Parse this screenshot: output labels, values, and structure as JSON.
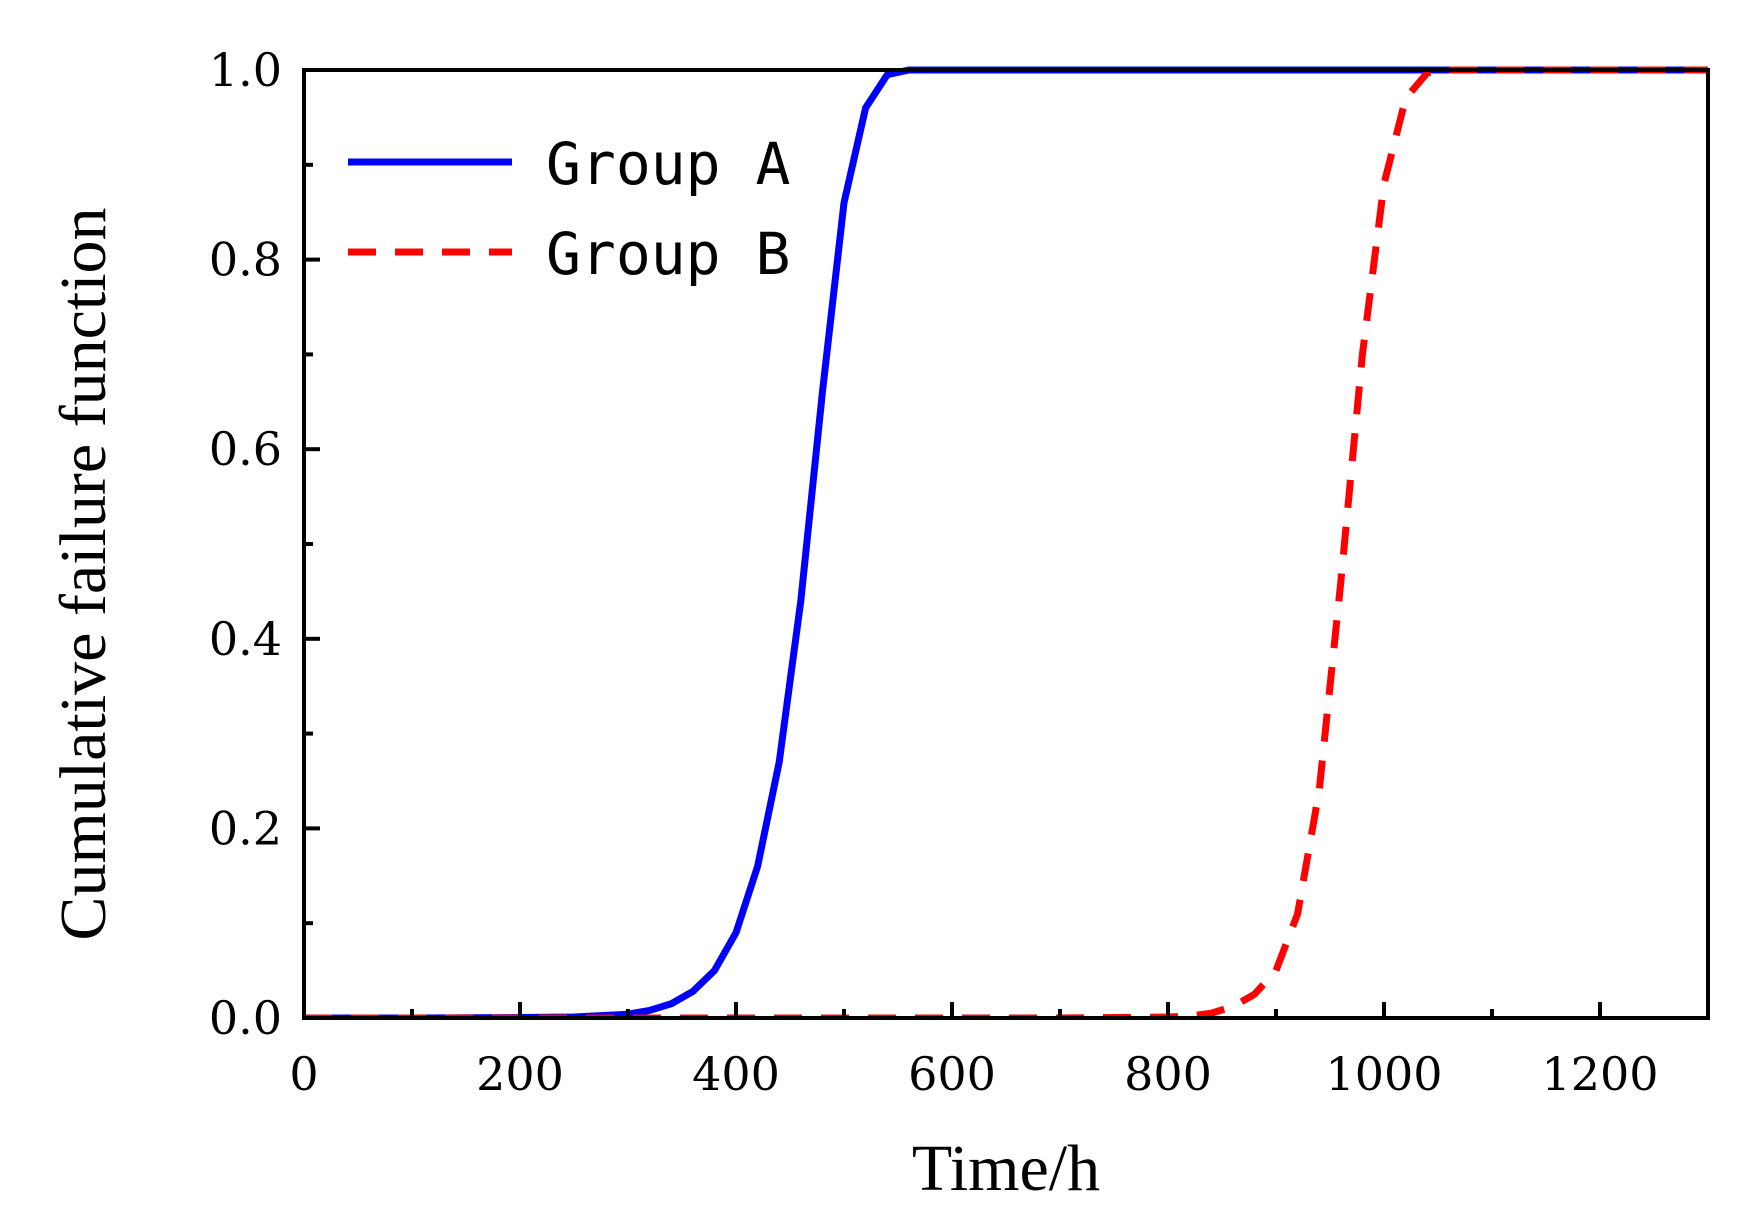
{
  "chart_data": {
    "type": "line",
    "xlabel": "Time/h",
    "ylabel": "Cumulative failure function",
    "xlim": [
      0,
      1300
    ],
    "ylim": [
      0,
      1.0
    ],
    "x_ticks": [
      "0",
      "200",
      "400",
      "600",
      "800",
      "1000",
      "1200"
    ],
    "x_tick_values": [
      0,
      200,
      400,
      600,
      800,
      1000,
      1200
    ],
    "y_ticks": [
      "0.0",
      "0.2",
      "0.4",
      "0.6",
      "0.8",
      "1.0"
    ],
    "y_tick_values": [
      0.0,
      0.2,
      0.4,
      0.6,
      0.8,
      1.0
    ],
    "x_minor_tick_values": [
      100,
      300,
      500,
      700,
      900,
      1100
    ],
    "y_minor_tick_values": [
      0.1,
      0.3,
      0.5,
      0.7,
      0.9
    ],
    "grid": false,
    "legend_position": "top-left",
    "series": [
      {
        "name": "Group A",
        "color": "#0000ff",
        "style": "solid",
        "x": [
          0,
          100,
          200,
          250,
          300,
          320,
          340,
          360,
          380,
          400,
          420,
          440,
          460,
          480,
          500,
          520,
          540,
          560,
          580,
          600,
          700,
          800,
          900,
          1000,
          1100,
          1200,
          1300
        ],
        "y": [
          0,
          0,
          0.0005,
          0.001,
          0.004,
          0.008,
          0.015,
          0.028,
          0.05,
          0.09,
          0.16,
          0.27,
          0.44,
          0.66,
          0.86,
          0.96,
          0.995,
          1.0,
          1.0,
          1.0,
          1.0,
          1.0,
          1.0,
          1.0,
          1.0,
          1.0,
          1.0
        ]
      },
      {
        "name": "Group B",
        "color": "#ff0000",
        "style": "dashed",
        "x": [
          0,
          200,
          400,
          600,
          700,
          800,
          820,
          840,
          860,
          880,
          900,
          920,
          940,
          960,
          980,
          1000,
          1020,
          1040,
          1060,
          1100,
          1200,
          1300
        ],
        "y": [
          0,
          0,
          0,
          0,
          0,
          0.001,
          0.002,
          0.005,
          0.012,
          0.025,
          0.05,
          0.11,
          0.24,
          0.46,
          0.7,
          0.88,
          0.97,
          0.997,
          1.0,
          1.0,
          1.0,
          1.0
        ]
      }
    ]
  }
}
